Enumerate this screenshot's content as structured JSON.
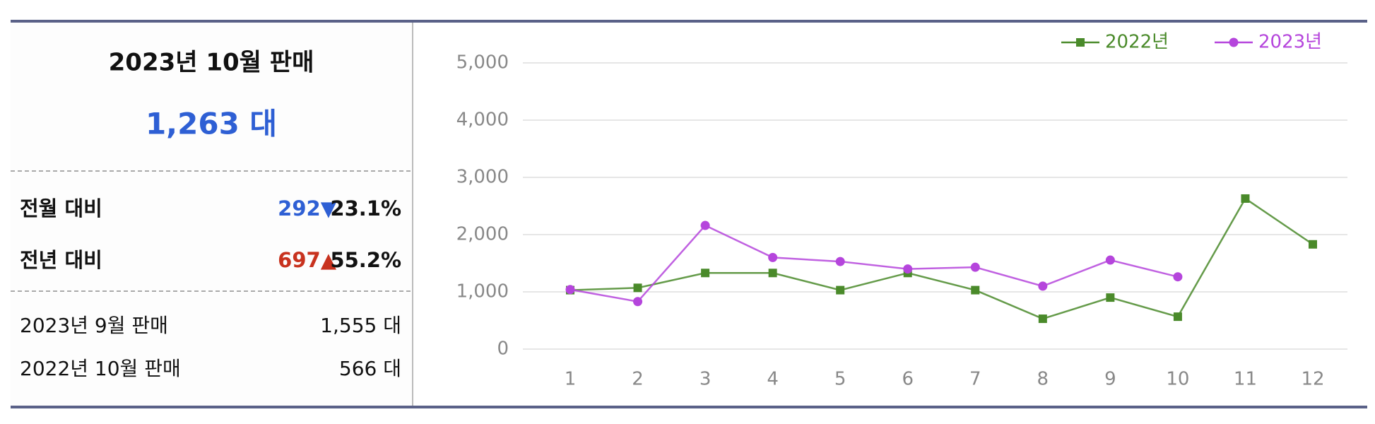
{
  "summary": {
    "title": "2023년 10월 판매",
    "total": "1,263 대",
    "rows": [
      {
        "label": "전월 대비",
        "change": "292▼",
        "percent": "23.1%"
      },
      {
        "label": "전년 대비",
        "change": "697▲",
        "percent": "55.2%"
      }
    ],
    "details": [
      {
        "label": "2023년 9월 판매",
        "value": "1,555 대"
      },
      {
        "label": "2022년 10월 판매",
        "value": "566 대"
      }
    ]
  },
  "chart_data": {
    "type": "line",
    "categories": [
      "1",
      "2",
      "3",
      "4",
      "5",
      "6",
      "7",
      "8",
      "9",
      "10",
      "11",
      "12"
    ],
    "series": [
      {
        "name": "2022년",
        "color": "#4a8a2a",
        "marker": "square",
        "values": [
          1030,
          1070,
          1330,
          1330,
          1030,
          1330,
          1030,
          530,
          900,
          566,
          2630,
          1830
        ]
      },
      {
        "name": "2023년",
        "color": "#b545dc",
        "marker": "circle",
        "values": [
          1040,
          830,
          2160,
          1600,
          1530,
          1400,
          1430,
          1100,
          1555,
          1263,
          null,
          null
        ]
      }
    ],
    "ylim": [
      0,
      5000
    ],
    "yticks": [
      0,
      {
        "value": 1000,
        "label": "1,000"
      },
      {
        "value": 2000,
        "label": "2,000"
      },
      {
        "value": 3000,
        "label": "3,000"
      },
      {
        "value": 4000,
        "label": "4,000"
      },
      {
        "value": 5000,
        "label": "5,000"
      }
    ],
    "grid": true,
    "legend": "top-right"
  }
}
